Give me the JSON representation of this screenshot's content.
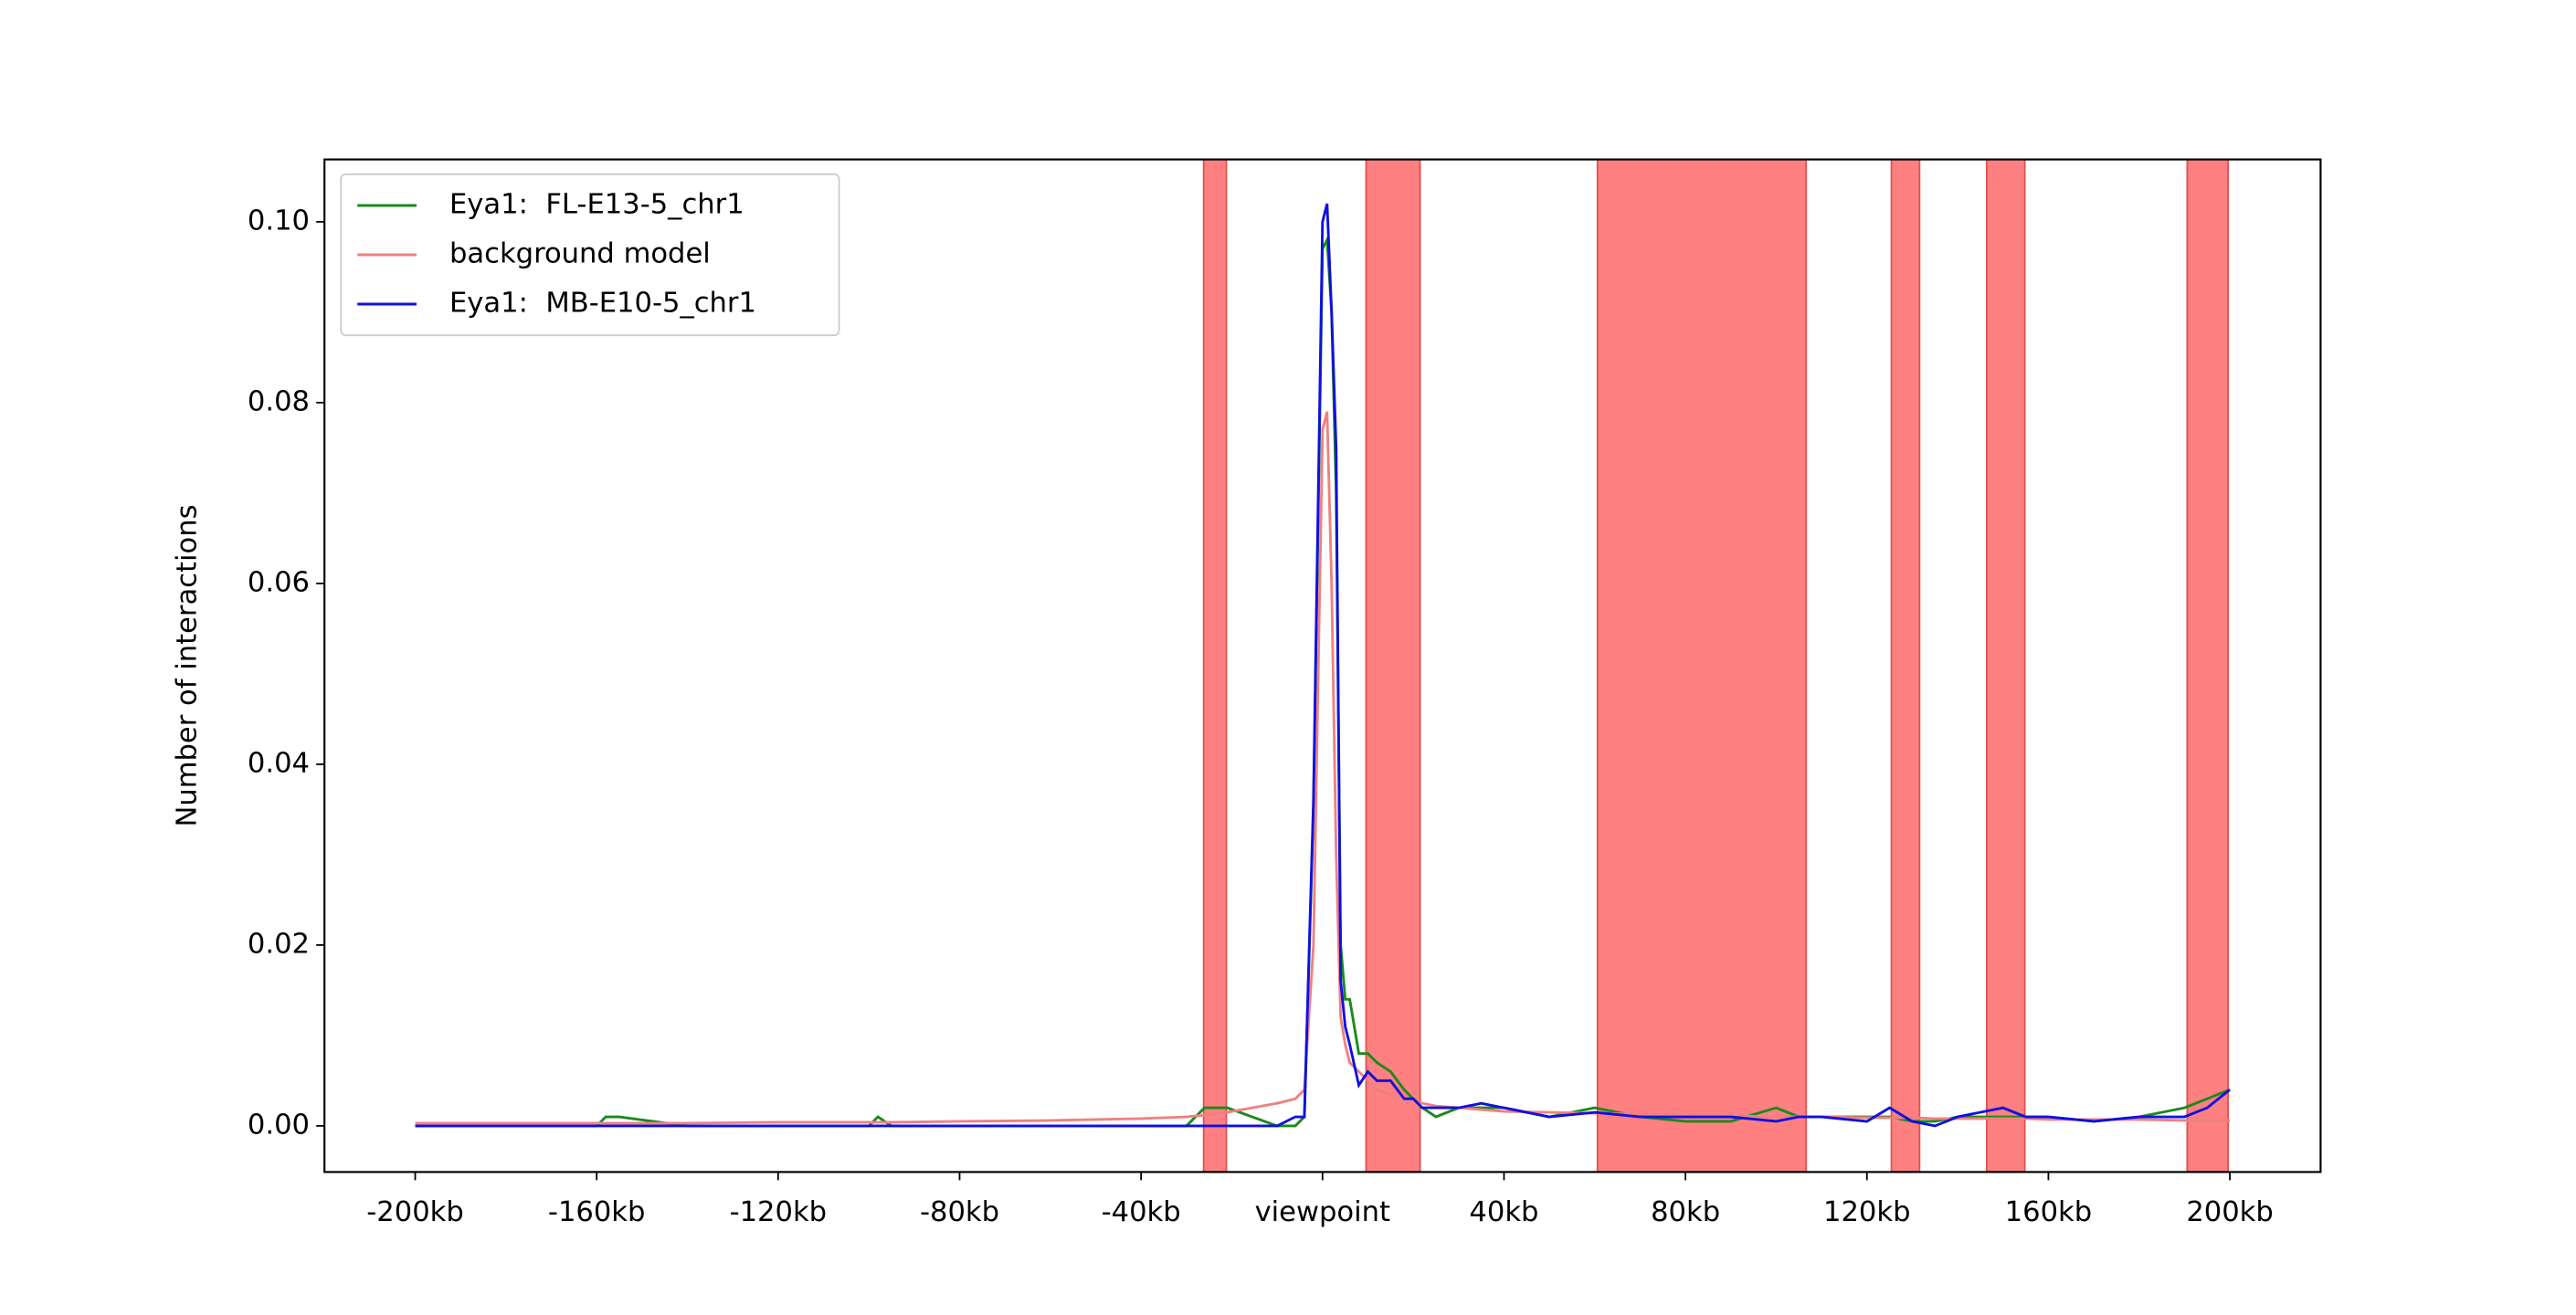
{
  "chart_data": {
    "type": "line",
    "ylabel": "Number of interactions",
    "x": [
      -200,
      -180,
      -160,
      -158,
      -155,
      -140,
      -120,
      -100,
      -98,
      -95,
      -80,
      -60,
      -40,
      -30,
      -26,
      -21,
      -10,
      -6,
      -4,
      -2,
      0,
      1,
      2,
      3,
      4,
      5,
      6,
      8,
      10,
      12,
      15,
      18,
      20,
      22,
      25,
      30,
      35,
      40,
      50,
      60,
      70,
      80,
      90,
      100,
      105,
      110,
      120,
      125,
      130,
      135,
      140,
      150,
      155,
      160,
      170,
      180,
      190,
      195,
      200
    ],
    "series": [
      {
        "name": "Eya1:  FL-E13-5_chr1",
        "color": "#1a8a1a",
        "values": [
          0,
          0,
          0,
          0.001,
          0.001,
          0,
          0,
          0,
          0.001,
          0,
          0,
          0,
          0,
          0,
          0.002,
          0.002,
          0,
          0,
          0.001,
          0.035,
          0.097,
          0.098,
          0.09,
          0.07,
          0.02,
          0.014,
          0.014,
          0.008,
          0.008,
          0.007,
          0.006,
          0.004,
          0.003,
          0.002,
          0.001,
          0.002,
          0.002,
          0.002,
          0.001,
          0.002,
          0.001,
          0.0005,
          0.0005,
          0.002,
          0.001,
          0.001,
          0.001,
          0.001,
          0.0005,
          0.0005,
          0.001,
          0.001,
          0.001,
          0.001,
          0.0005,
          0.001,
          0.002,
          0.003,
          0.004
        ]
      },
      {
        "name": "background model",
        "color": "#f08080",
        "values": [
          0.0003,
          0.0003,
          0.0003,
          0.0003,
          0.0003,
          0.0003,
          0.0004,
          0.0004,
          0.0004,
          0.0004,
          0.0005,
          0.0006,
          0.0008,
          0.001,
          0.0012,
          0.0015,
          0.0025,
          0.003,
          0.004,
          0.02,
          0.077,
          0.079,
          0.06,
          0.03,
          0.012,
          0.009,
          0.007,
          0.006,
          0.005,
          0.004,
          0.0035,
          0.003,
          0.0028,
          0.0025,
          0.0022,
          0.002,
          0.0018,
          0.0016,
          0.0015,
          0.0014,
          0.0013,
          0.0012,
          0.0011,
          0.001,
          0.001,
          0.001,
          0.0009,
          0.0009,
          0.0009,
          0.0008,
          0.0008,
          0.0008,
          0.0008,
          0.0007,
          0.0007,
          0.0007,
          0.0006,
          0.0006,
          0.0006
        ]
      },
      {
        "name": "Eya1:  MB-E10-5_chr1",
        "color": "#1010e0",
        "values": [
          0,
          0,
          0,
          0,
          0,
          0,
          0,
          0,
          0,
          0,
          0,
          0,
          0,
          0,
          0,
          0,
          0,
          0.001,
          0.001,
          0.036,
          0.1,
          0.102,
          0.09,
          0.075,
          0.016,
          0.011,
          0.009,
          0.0045,
          0.006,
          0.005,
          0.005,
          0.003,
          0.003,
          0.002,
          0.002,
          0.002,
          0.0025,
          0.002,
          0.001,
          0.0015,
          0.001,
          0.001,
          0.001,
          0.0005,
          0.001,
          0.001,
          0.0005,
          0.002,
          0.0005,
          0,
          0.001,
          0.002,
          0.001,
          0.001,
          0.0005,
          0.001,
          0.001,
          0.002,
          0.004
        ]
      }
    ],
    "highlights": [
      [
        -26.2,
        -21.2
      ],
      [
        9.6,
        21.5
      ],
      [
        60.6,
        106.6
      ],
      [
        125.4,
        131.6
      ],
      [
        146.4,
        154.8
      ],
      [
        190.6,
        199.6
      ]
    ],
    "highlight_color": "#ff8080",
    "xlim": [
      -220,
      220
    ],
    "xticks": [
      {
        "value": -200,
        "label": "-200kb"
      },
      {
        "value": -160,
        "label": "-160kb"
      },
      {
        "value": -120,
        "label": "-120kb"
      },
      {
        "value": -80,
        "label": "-80kb"
      },
      {
        "value": -40,
        "label": "-40kb"
      },
      {
        "value": 0,
        "label": "viewpoint"
      },
      {
        "value": 40,
        "label": "40kb"
      },
      {
        "value": 80,
        "label": "80kb"
      },
      {
        "value": 120,
        "label": "120kb"
      },
      {
        "value": 160,
        "label": "160kb"
      },
      {
        "value": 200,
        "label": "200kb"
      }
    ],
    "ylim": [
      -0.0051,
      0.1069
    ],
    "yticks": [
      {
        "value": 0,
        "label": "0.00"
      },
      {
        "value": 0.02,
        "label": "0.02"
      },
      {
        "value": 0.04,
        "label": "0.04"
      },
      {
        "value": 0.06,
        "label": "0.06"
      },
      {
        "value": 0.08,
        "label": "0.08"
      },
      {
        "value": 0.1,
        "label": "0.10"
      }
    ],
    "legend": "upper left"
  }
}
